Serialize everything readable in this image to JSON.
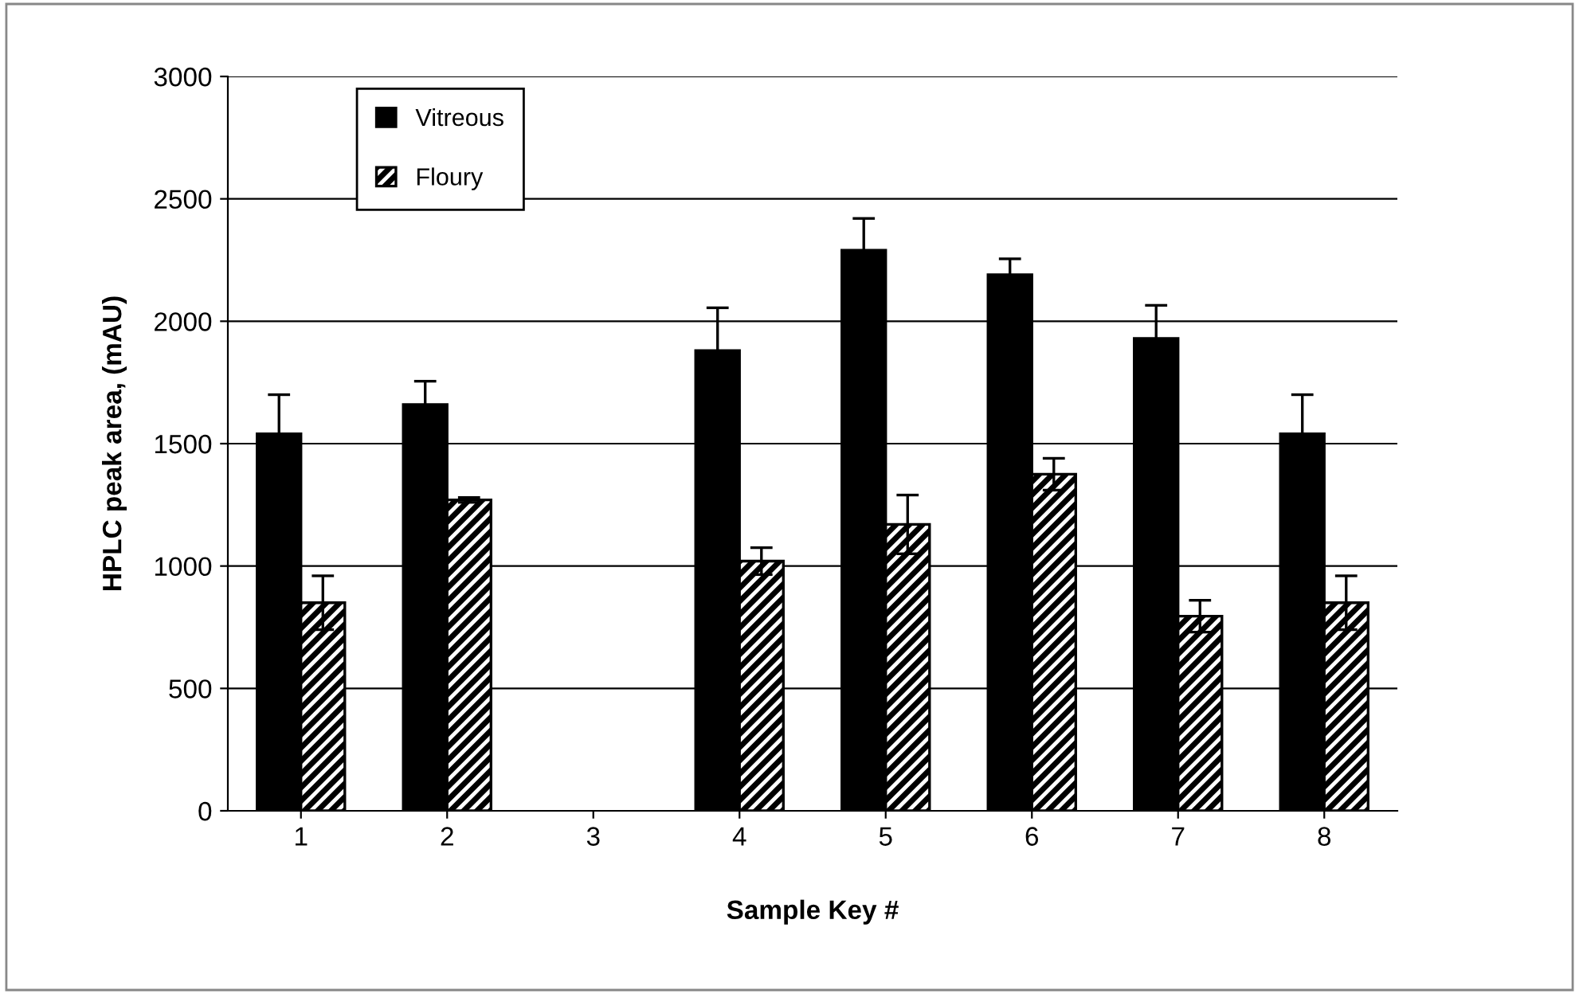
{
  "chart_data": {
    "type": "bar",
    "xlabel": "Sample Key #",
    "ylabel": "HPLC peak area, (mAU)",
    "categories": [
      "1",
      "2",
      "3",
      "4",
      "5",
      "6",
      "7",
      "8"
    ],
    "series": [
      {
        "name": "Vitreous",
        "color": "#000000",
        "values": [
          1540,
          1660,
          null,
          1880,
          2290,
          2190,
          1930,
          1540
        ],
        "errors": [
          160,
          95,
          null,
          175,
          130,
          65,
          135,
          160
        ]
      },
      {
        "name": "Floury",
        "color": "#000000",
        "values": [
          850,
          1270,
          null,
          1020,
          1170,
          1375,
          795,
          850
        ],
        "errors": [
          110,
          10,
          null,
          55,
          120,
          65,
          65,
          110
        ]
      }
    ],
    "ylim": [
      0,
      3000
    ],
    "yticks": [
      0,
      500,
      1000,
      1500,
      2000,
      2500,
      3000
    ],
    "grid": "y",
    "legend": "top left"
  }
}
